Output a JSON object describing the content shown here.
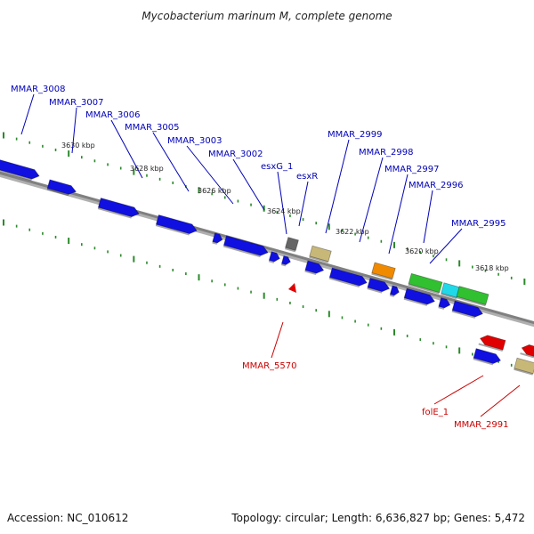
{
  "title": "Mycobacterium marinum M, complete genome",
  "accession": "Accession: NC_010612",
  "topology": "Topology: circular; Length: 6,636,827 bp; Genes: 5,472",
  "colors": {
    "cds_forward": "#1010e0",
    "cds_reverse": "#1010e0",
    "backbone": "#808080",
    "ticks": "#2a8a2a",
    "label_forward": "#0000b8",
    "label_reverse": "#cc0000",
    "grey_gene": "#666666",
    "tan_gene": "#c8b878",
    "orange_gene": "#f08a00",
    "green_gene": "#30c030",
    "cyan_gene": "#20d8e8",
    "red_gene": "#e00000"
  },
  "scale_ticks": [
    "3630 kbp",
    "3628 kbp",
    "3626 kbp",
    "3624 kbp",
    "3622 kbp",
    "3620 kbp",
    "3618 kbp"
  ],
  "gene_labels": [
    {
      "name": "MMAR_3008",
      "strand": "forward"
    },
    {
      "name": "MMAR_3007",
      "strand": "forward"
    },
    {
      "name": "MMAR_3006",
      "strand": "forward"
    },
    {
      "name": "MMAR_3005",
      "strand": "forward"
    },
    {
      "name": "MMAR_3003",
      "strand": "forward"
    },
    {
      "name": "MMAR_3002",
      "strand": "forward"
    },
    {
      "name": "esxG_1",
      "strand": "forward"
    },
    {
      "name": "esxR",
      "strand": "forward"
    },
    {
      "name": "MMAR_2999",
      "strand": "forward"
    },
    {
      "name": "MMAR_2998",
      "strand": "forward"
    },
    {
      "name": "MMAR_2997",
      "strand": "forward"
    },
    {
      "name": "MMAR_2996",
      "strand": "forward"
    },
    {
      "name": "MMAR_2995",
      "strand": "forward"
    },
    {
      "name": "MMAR_5570",
      "strand": "reverse"
    },
    {
      "name": "folE_1",
      "strand": "reverse"
    },
    {
      "name": "MMAR_2991",
      "strand": "reverse"
    }
  ]
}
